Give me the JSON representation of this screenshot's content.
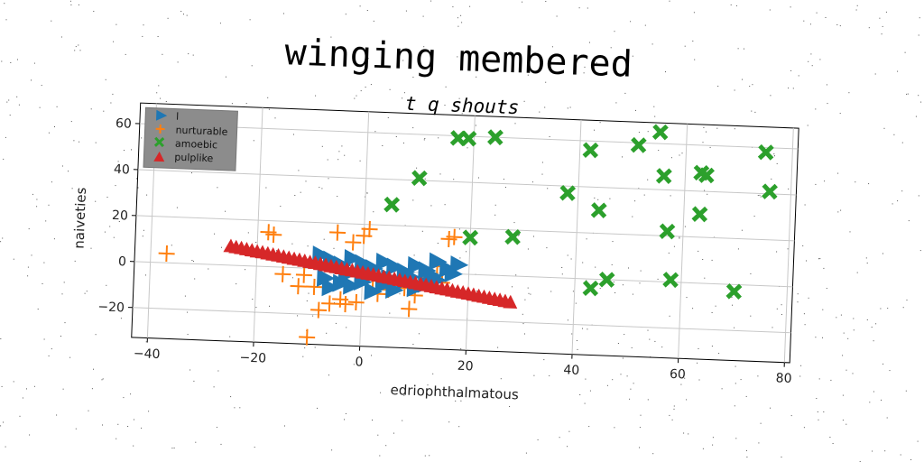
{
  "chart_data": {
    "type": "scatter",
    "title": "winging membered",
    "subtitle": "t q shouts",
    "xlabel": "edriophthalmatous",
    "ylabel": "naiveties",
    "xlim": [
      -43,
      81
    ],
    "ylim": [
      -33,
      69
    ],
    "xticks": [
      -40,
      -20,
      0,
      20,
      40,
      60,
      80
    ],
    "yticks": [
      -20,
      0,
      20,
      40,
      60
    ],
    "grid": true,
    "legend_position": "top-left",
    "series": [
      {
        "name": "l",
        "marker": "triangle-right",
        "color": "#1f77b4",
        "points": [
          [
            -8,
            6
          ],
          [
            -6,
            4
          ],
          [
            -4,
            2
          ],
          [
            -2,
            5
          ],
          [
            0,
            3
          ],
          [
            2,
            1
          ],
          [
            4,
            4
          ],
          [
            6,
            2
          ],
          [
            8,
            0
          ],
          [
            10,
            3
          ],
          [
            12,
            1
          ],
          [
            14,
            5
          ],
          [
            16,
            2
          ],
          [
            18,
            4
          ],
          [
            -6,
            -8
          ],
          [
            -4,
            -6
          ],
          [
            -2,
            -7
          ],
          [
            0,
            -5
          ],
          [
            2,
            -9
          ],
          [
            4,
            -6
          ],
          [
            6,
            -8
          ],
          [
            8,
            -4
          ],
          [
            10,
            -7
          ],
          [
            12,
            -5
          ],
          [
            14,
            -3
          ],
          [
            -3,
            -2
          ],
          [
            1,
            -1
          ],
          [
            5,
            -3
          ],
          [
            9,
            -2
          ],
          [
            13,
            -1
          ],
          [
            17,
            0
          ],
          [
            -7,
            -4
          ]
        ]
      },
      {
        "name": "nurturable",
        "marker": "plus",
        "color": "#ff7f0e",
        "points": [
          [
            -37,
            4
          ],
          [
            -18,
            15
          ],
          [
            -17,
            14
          ],
          [
            -15,
            -3
          ],
          [
            -12,
            -8
          ],
          [
            -10,
            -30
          ],
          [
            -9,
            -8
          ],
          [
            -8,
            -18
          ],
          [
            -6,
            -15
          ],
          [
            -5,
            16
          ],
          [
            -4,
            -13
          ],
          [
            -3,
            -15
          ],
          [
            -2,
            12
          ],
          [
            -1,
            -14
          ],
          [
            0,
            15
          ],
          [
            1,
            18
          ],
          [
            2,
            -4
          ],
          [
            3,
            -10
          ],
          [
            5,
            -8
          ],
          [
            6,
            -5
          ],
          [
            7,
            -3
          ],
          [
            8,
            -7
          ],
          [
            9,
            -16
          ],
          [
            10,
            -10
          ],
          [
            12,
            -2
          ],
          [
            14,
            3
          ],
          [
            15,
            -4
          ],
          [
            16,
            15
          ],
          [
            17,
            16
          ],
          [
            -11,
            -3
          ]
        ]
      },
      {
        "name": "amoebic",
        "marker": "x",
        "color": "#2ca02c",
        "points": [
          [
            5,
            29
          ],
          [
            10,
            41
          ],
          [
            17,
            59
          ],
          [
            19,
            59
          ],
          [
            20,
            16
          ],
          [
            24,
            60
          ],
          [
            28,
            17
          ],
          [
            38,
            37
          ],
          [
            42,
            56
          ],
          [
            43,
            -4
          ],
          [
            44,
            30
          ],
          [
            46,
            0
          ],
          [
            51,
            59
          ],
          [
            55,
            65
          ],
          [
            56,
            46
          ],
          [
            57,
            22
          ],
          [
            58,
            1
          ],
          [
            63,
            30
          ],
          [
            63,
            48
          ],
          [
            64,
            47
          ],
          [
            70,
            -3
          ],
          [
            75,
            58
          ],
          [
            76,
            41
          ]
        ]
      },
      {
        "name": "pulplike",
        "marker": "triangle-up",
        "color": "#d62728",
        "points": [
          [
            -25,
            8
          ],
          [
            -24,
            7.6
          ],
          [
            -23,
            7.3
          ],
          [
            -22,
            6.9
          ],
          [
            -21,
            6.5
          ],
          [
            -20,
            6.1
          ],
          [
            -19,
            5.8
          ],
          [
            -18,
            5.4
          ],
          [
            -17,
            5.0
          ],
          [
            -16,
            4.7
          ],
          [
            -15,
            4.3
          ],
          [
            -14,
            3.9
          ],
          [
            -13,
            3.5
          ],
          [
            -12,
            3.2
          ],
          [
            -11,
            2.8
          ],
          [
            -10,
            2.4
          ],
          [
            -9,
            2.1
          ],
          [
            -8,
            1.7
          ],
          [
            -7,
            1.3
          ],
          [
            -6,
            0.9
          ],
          [
            -5,
            0.6
          ],
          [
            -4,
            0.2
          ],
          [
            -3,
            -0.2
          ],
          [
            -2,
            -0.5
          ],
          [
            -1,
            -0.9
          ],
          [
            0,
            -1.3
          ],
          [
            1,
            -1.7
          ],
          [
            2,
            -2.0
          ],
          [
            3,
            -2.4
          ],
          [
            4,
            -2.8
          ],
          [
            5,
            -3.1
          ],
          [
            6,
            -3.5
          ],
          [
            7,
            -3.9
          ],
          [
            8,
            -4.3
          ],
          [
            9,
            -4.6
          ],
          [
            10,
            -5.0
          ],
          [
            11,
            -5.4
          ],
          [
            12,
            -5.7
          ],
          [
            13,
            -6.1
          ],
          [
            14,
            -6.5
          ],
          [
            15,
            -6.9
          ],
          [
            16,
            -7.2
          ],
          [
            17,
            -7.6
          ],
          [
            18,
            -8.0
          ],
          [
            19,
            -8.3
          ],
          [
            20,
            -8.7
          ],
          [
            21,
            -9.1
          ],
          [
            22,
            -9.5
          ],
          [
            23,
            -9.8
          ],
          [
            24,
            -10.2
          ],
          [
            25,
            -10.6
          ],
          [
            26,
            -10.9
          ],
          [
            27,
            -11.3
          ],
          [
            28,
            -11.7
          ]
        ]
      }
    ]
  }
}
